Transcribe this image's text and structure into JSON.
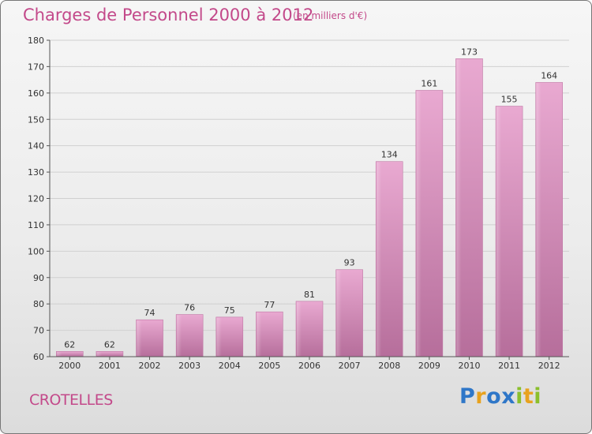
{
  "header": {
    "title": "Charges de Personnel 2000 à 2012",
    "subtitle": "(en milliers d'€)"
  },
  "footer": {
    "place": "CROTELLES",
    "logo": "Proxiti",
    "logo_colors": [
      "#2f77c8",
      "#e8a21e",
      "#2f77c8",
      "#2f77c8",
      "#8bbf2c",
      "#e8a21e",
      "#8bbf2c"
    ]
  },
  "colors": {
    "title": "#c3498a",
    "bar_light": "#e9a9d1",
    "bar_dark": "#b66e9b"
  },
  "chart_data": {
    "type": "bar",
    "title": "Charges de Personnel 2000 à 2012",
    "categories": [
      "2000",
      "2001",
      "2002",
      "2003",
      "2004",
      "2005",
      "2006",
      "2007",
      "2008",
      "2009",
      "2010",
      "2011",
      "2012"
    ],
    "values": [
      62,
      62,
      74,
      76,
      75,
      77,
      81,
      93,
      134,
      161,
      173,
      155,
      164
    ],
    "ylim": [
      60,
      180
    ],
    "yticks": [
      60,
      70,
      80,
      90,
      100,
      110,
      120,
      130,
      140,
      150,
      160,
      170,
      180
    ],
    "grid": true
  }
}
